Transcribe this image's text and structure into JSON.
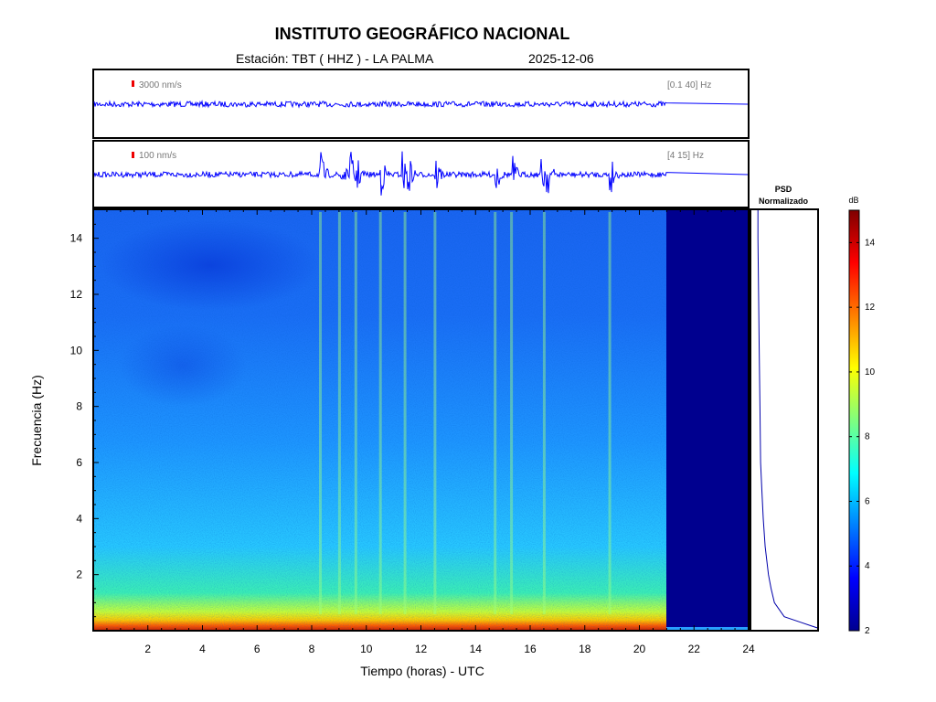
{
  "header": {
    "title": "INSTITUTO GEOGRÁFICO NACIONAL",
    "station": "Estación:  TBT ( HHZ ) - LA PALMA",
    "date": "2025-12-06"
  },
  "chart_data": [
    {
      "type": "line",
      "panel": "seismogram-broadband",
      "scale_label": "3000 nm/s",
      "filter_label": "[0.1 40] Hz",
      "x_range_hours": [
        0,
        24
      ],
      "data_end_hour": 21,
      "events_hours": [
        21
      ]
    },
    {
      "type": "line",
      "panel": "seismogram-filtered",
      "scale_label": "100 nm/s",
      "filter_label": "[4 15] Hz",
      "x_range_hours": [
        0,
        24
      ],
      "data_end_hour": 21,
      "events_hours": [
        8.3,
        9.0,
        9.4,
        9.6,
        10.5,
        11.3,
        11.5,
        12.5,
        14.7,
        15.3,
        16.4,
        16.6,
        18.9
      ]
    },
    {
      "type": "heatmap",
      "panel": "spectrogram",
      "xlabel": "Tiempo (horas) - UTC",
      "ylabel": "Frecuencia  (Hz)",
      "xlim": [
        0,
        24
      ],
      "ylim": [
        0,
        15
      ],
      "x_ticks": [
        2,
        4,
        6,
        8,
        10,
        12,
        14,
        16,
        18,
        20,
        22,
        24
      ],
      "y_ticks": [
        2,
        4,
        6,
        8,
        10,
        12,
        14
      ],
      "data_end_hour": 21,
      "event_lines_hours": [
        8.3,
        9.0,
        9.6,
        10.5,
        11.4,
        12.5,
        14.7,
        15.3,
        16.5,
        18.9
      ]
    },
    {
      "type": "line",
      "panel": "psd",
      "title_line1": "PSD",
      "title_line2": "Normalizado",
      "freq_hz": [
        0.1,
        0.3,
        0.5,
        1,
        1.5,
        2,
        3,
        4,
        5,
        6,
        8,
        10,
        12,
        14,
        15
      ],
      "psd_normalized": [
        1.0,
        0.75,
        0.5,
        0.35,
        0.3,
        0.26,
        0.21,
        0.18,
        0.16,
        0.14,
        0.13,
        0.12,
        0.11,
        0.1,
        0.1
      ]
    },
    {
      "type": "colorbar",
      "unit": "dB",
      "range": [
        2,
        15
      ],
      "ticks": [
        2,
        4,
        6,
        8,
        10,
        12,
        14
      ],
      "colors": [
        "#00008f",
        "#0000ff",
        "#007fff",
        "#00ffff",
        "#7fff7f",
        "#ffff00",
        "#ff7f00",
        "#ff0000",
        "#7f0000"
      ]
    }
  ]
}
